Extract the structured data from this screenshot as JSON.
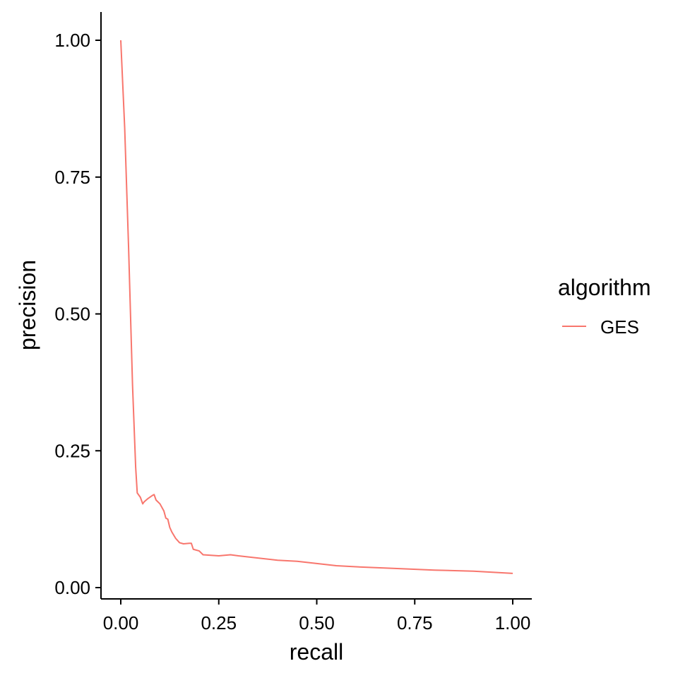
{
  "chart_data": {
    "type": "line",
    "xlabel": "recall",
    "ylabel": "precision",
    "xlim": [
      0,
      1
    ],
    "ylim": [
      0,
      1
    ],
    "x_ticks": [
      0,
      0.25,
      0.5,
      0.75,
      1
    ],
    "x_tick_labels": [
      "0.00",
      "0.25",
      "0.50",
      "0.75",
      "1.00"
    ],
    "y_ticks": [
      0,
      0.25,
      0.5,
      0.75,
      1
    ],
    "y_tick_labels": [
      "0.00",
      "0.25",
      "0.50",
      "0.75",
      "1.00"
    ],
    "grid": false,
    "legend": {
      "title": "algorithm",
      "placement": "right"
    },
    "series": [
      {
        "name": "GES",
        "color": "#F8766D",
        "points": [
          [
            0.0,
            1.0
          ],
          [
            0.01,
            0.84
          ],
          [
            0.02,
            0.62
          ],
          [
            0.03,
            0.37
          ],
          [
            0.038,
            0.22
          ],
          [
            0.042,
            0.173
          ],
          [
            0.05,
            0.165
          ],
          [
            0.056,
            0.153
          ],
          [
            0.06,
            0.157
          ],
          [
            0.07,
            0.163
          ],
          [
            0.08,
            0.168
          ],
          [
            0.085,
            0.17
          ],
          [
            0.09,
            0.16
          ],
          [
            0.1,
            0.153
          ],
          [
            0.11,
            0.14
          ],
          [
            0.115,
            0.127
          ],
          [
            0.12,
            0.125
          ],
          [
            0.125,
            0.11
          ],
          [
            0.13,
            0.102
          ],
          [
            0.14,
            0.09
          ],
          [
            0.15,
            0.082
          ],
          [
            0.16,
            0.08
          ],
          [
            0.175,
            0.081
          ],
          [
            0.18,
            0.081
          ],
          [
            0.185,
            0.07
          ],
          [
            0.2,
            0.067
          ],
          [
            0.21,
            0.06
          ],
          [
            0.25,
            0.058
          ],
          [
            0.28,
            0.06
          ],
          [
            0.3,
            0.058
          ],
          [
            0.35,
            0.054
          ],
          [
            0.4,
            0.05
          ],
          [
            0.45,
            0.048
          ],
          [
            0.5,
            0.044
          ],
          [
            0.55,
            0.04
          ],
          [
            0.6,
            0.038
          ],
          [
            0.7,
            0.035
          ],
          [
            0.8,
            0.032
          ],
          [
            0.9,
            0.03
          ],
          [
            1.0,
            0.026
          ]
        ]
      }
    ]
  }
}
